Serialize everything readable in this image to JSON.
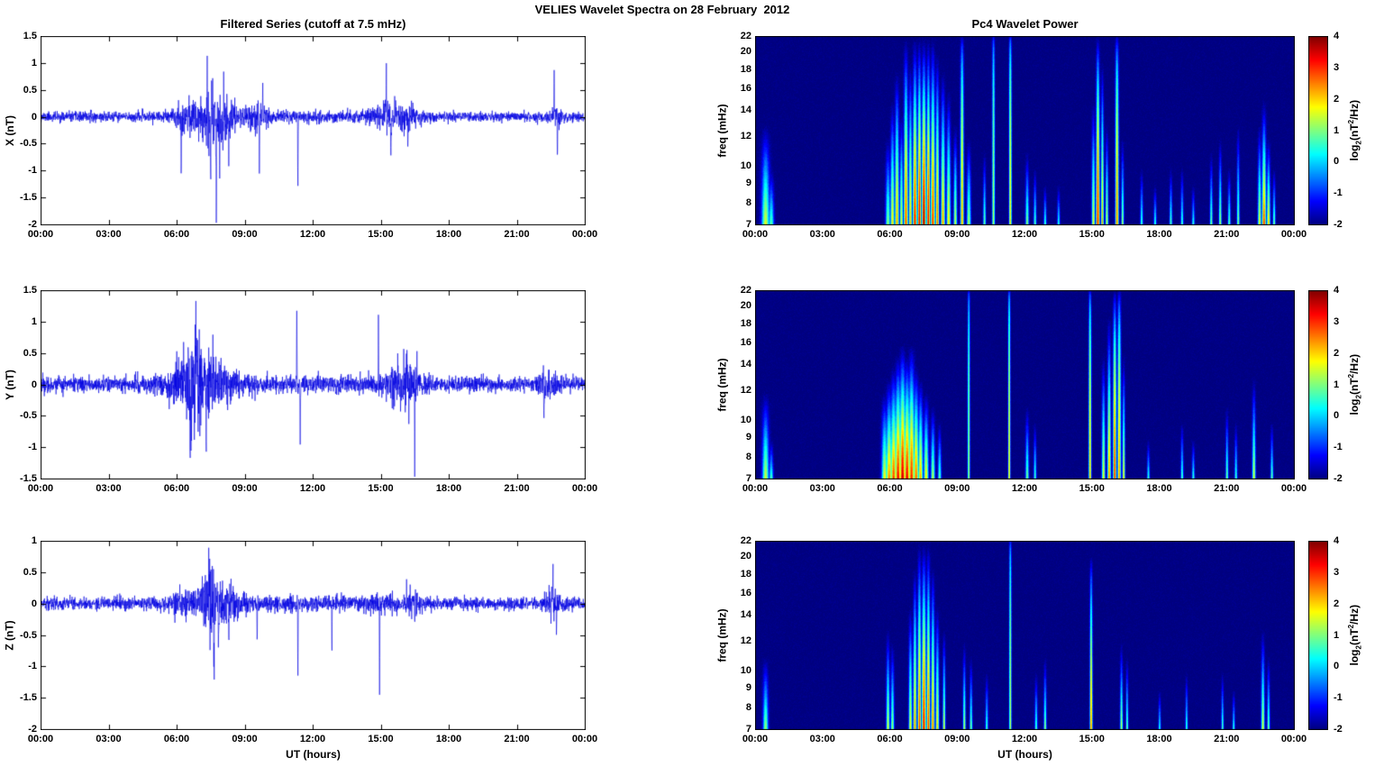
{
  "figure_title": "VELIES Wavelet Spectra on 28 February  2012",
  "colors": {
    "line": "#0000E0",
    "axis": "#000000",
    "background": "#FFFFFF",
    "colormap": "jet",
    "colormap_min": "#00007F",
    "colormap_max": "#7F0000"
  },
  "time_axis": {
    "label": "UT (hours)",
    "ticks": [
      "00:00",
      "03:00",
      "06:00",
      "09:00",
      "12:00",
      "15:00",
      "18:00",
      "21:00",
      "00:00"
    ],
    "range_hours": [
      0,
      24
    ]
  },
  "colorbar_label": {
    "prefix": "log",
    "sub": "2",
    "mid": "(nT",
    "sup": "2",
    "suffix": "/Hz)"
  },
  "chart_data": [
    {
      "type": "line",
      "component": "X",
      "title": "Filtered Series (cutoff at 7.5 mHz)",
      "ylabel": "X (nT)",
      "ylim": [
        -2,
        1.5
      ],
      "yticks": [
        1.5,
        1,
        0.5,
        0,
        -0.5,
        -1,
        -1.5,
        -2
      ],
      "xlim_hours": [
        0,
        24
      ],
      "seed": 11,
      "noise_base": 0.045,
      "bursts": [
        [
          7.7,
          0.75,
          0.2
        ],
        [
          7.7,
          0.25,
          0.12
        ],
        [
          6.3,
          0.25,
          0.08
        ],
        [
          9.6,
          0.3,
          0.1
        ],
        [
          15.5,
          0.6,
          0.09
        ],
        [
          16.3,
          0.2,
          0.06
        ],
        [
          22.7,
          0.2,
          0.1
        ],
        [
          12.0,
          3.0,
          0.012
        ]
      ],
      "spikes": [
        [
          6.2,
          -1.0
        ],
        [
          7.35,
          1.05
        ],
        [
          7.5,
          -1.55
        ],
        [
          7.75,
          -1.85
        ],
        [
          7.9,
          -1.25
        ],
        [
          8.05,
          -0.95
        ],
        [
          8.3,
          -0.8
        ],
        [
          9.65,
          -0.85
        ],
        [
          9.8,
          0.55
        ],
        [
          11.35,
          -1.3
        ],
        [
          15.25,
          1.0
        ],
        [
          15.45,
          -0.65
        ],
        [
          16.2,
          -0.55
        ],
        [
          22.65,
          1.05
        ],
        [
          22.8,
          -0.7
        ]
      ]
    },
    {
      "type": "heatmap",
      "component": "X",
      "title": "Pc4 Wavelet Power",
      "ylabel": "freq (mHz)",
      "ylim": [
        7,
        22
      ],
      "yscale": "log",
      "yticks": [
        7,
        8,
        9,
        10,
        12,
        14,
        16,
        18,
        20,
        22
      ],
      "xlim_hours": [
        0,
        24
      ],
      "seed": 101,
      "base_power": -2,
      "colorbar": {
        "label": "log2(nT^2/Hz)",
        "ticks": [
          4,
          3,
          2,
          1,
          0,
          -1,
          -2
        ],
        "range": [
          -2,
          4
        ]
      },
      "events": [
        [
          0.45,
          0.12,
          1.6,
          13
        ],
        [
          0.7,
          0.08,
          0.9,
          10
        ],
        [
          5.9,
          0.07,
          1.2,
          12
        ],
        [
          6.1,
          0.06,
          2.0,
          15
        ],
        [
          6.3,
          0.06,
          2.4,
          18
        ],
        [
          6.5,
          0.05,
          1.8,
          14
        ],
        [
          6.7,
          0.06,
          3.0,
          22
        ],
        [
          6.9,
          0.05,
          2.2,
          19
        ],
        [
          7.1,
          0.06,
          3.4,
          22
        ],
        [
          7.3,
          0.05,
          3.7,
          22
        ],
        [
          7.5,
          0.06,
          4.0,
          22
        ],
        [
          7.7,
          0.05,
          3.6,
          22
        ],
        [
          7.9,
          0.06,
          3.2,
          22
        ],
        [
          8.1,
          0.05,
          2.8,
          20
        ],
        [
          8.35,
          0.06,
          2.4,
          18
        ],
        [
          8.6,
          0.06,
          2.0,
          16
        ],
        [
          8.9,
          0.05,
          1.6,
          13
        ],
        [
          9.2,
          0.05,
          2.4,
          22,
          0.6
        ],
        [
          9.5,
          0.06,
          1.4,
          12
        ],
        [
          10.2,
          0.04,
          1.0,
          11
        ],
        [
          10.6,
          0.04,
          1.4,
          22,
          0.35
        ],
        [
          11.35,
          0.04,
          2.0,
          22,
          0.35
        ],
        [
          12.1,
          0.05,
          1.2,
          11
        ],
        [
          12.45,
          0.04,
          0.9,
          10
        ],
        [
          12.9,
          0.04,
          0.8,
          9
        ],
        [
          13.5,
          0.04,
          0.6,
          9
        ],
        [
          15.05,
          0.05,
          1.8,
          15
        ],
        [
          15.25,
          0.05,
          3.4,
          22,
          0.9
        ],
        [
          15.45,
          0.04,
          2.4,
          19
        ],
        [
          15.65,
          0.04,
          1.7,
          13
        ],
        [
          16.1,
          0.05,
          2.6,
          22,
          0.6
        ],
        [
          16.35,
          0.04,
          1.4,
          12
        ],
        [
          17.2,
          0.04,
          0.8,
          10
        ],
        [
          17.8,
          0.04,
          0.7,
          9
        ],
        [
          18.5,
          0.04,
          0.9,
          10
        ],
        [
          19.0,
          0.04,
          0.8,
          10
        ],
        [
          19.5,
          0.04,
          0.6,
          9
        ],
        [
          20.3,
          0.04,
          1.1,
          11
        ],
        [
          20.7,
          0.04,
          1.4,
          12
        ],
        [
          21.1,
          0.04,
          1.0,
          10
        ],
        [
          21.5,
          0.04,
          1.2,
          13
        ],
        [
          22.45,
          0.05,
          1.8,
          13
        ],
        [
          22.65,
          0.06,
          3.0,
          15
        ],
        [
          22.85,
          0.05,
          2.2,
          12
        ],
        [
          23.1,
          0.04,
          1.1,
          10
        ]
      ]
    },
    {
      "type": "line",
      "component": "Y",
      "title": "",
      "ylabel": "Y (nT)",
      "ylim": [
        -1.5,
        1.5
      ],
      "yticks": [
        1.5,
        1,
        0.5,
        0,
        -0.5,
        -1,
        -1.5
      ],
      "xlim_hours": [
        0,
        24
      ],
      "seed": 22,
      "noise_base": 0.06,
      "bursts": [
        [
          7.0,
          0.9,
          0.22
        ],
        [
          6.8,
          0.35,
          0.12
        ],
        [
          15.9,
          0.5,
          0.12
        ],
        [
          16.2,
          0.2,
          0.08
        ],
        [
          22.3,
          0.25,
          0.08
        ],
        [
          12.0,
          3.0,
          0.015
        ]
      ],
      "spikes": [
        [
          6.6,
          -1.05
        ],
        [
          6.85,
          0.8
        ],
        [
          7.3,
          -0.85
        ],
        [
          7.6,
          0.6
        ],
        [
          11.3,
          1.3
        ],
        [
          11.45,
          -1.0
        ],
        [
          14.9,
          1.05
        ],
        [
          16.5,
          -1.4
        ],
        [
          16.6,
          0.55
        ],
        [
          22.2,
          -0.65
        ]
      ]
    },
    {
      "type": "heatmap",
      "component": "Y",
      "title": "",
      "ylabel": "freq (mHz)",
      "ylim": [
        7,
        22
      ],
      "yscale": "log",
      "yticks": [
        7,
        8,
        9,
        10,
        12,
        14,
        16,
        18,
        20,
        22
      ],
      "xlim_hours": [
        0,
        24
      ],
      "seed": 102,
      "base_power": -2,
      "colorbar": {
        "label": "log2(nT^2/Hz)",
        "ticks": [
          4,
          3,
          2,
          1,
          0,
          -1,
          -2
        ],
        "range": [
          -2,
          4
        ]
      },
      "events": [
        [
          0.45,
          0.1,
          1.5,
          12
        ],
        [
          0.7,
          0.06,
          0.8,
          9
        ],
        [
          5.75,
          0.09,
          1.8,
          12
        ],
        [
          5.95,
          0.09,
          2.6,
          13
        ],
        [
          6.15,
          0.09,
          3.0,
          14
        ],
        [
          6.35,
          0.09,
          3.4,
          15
        ],
        [
          6.55,
          0.09,
          3.7,
          16
        ],
        [
          6.75,
          0.09,
          3.5,
          15
        ],
        [
          6.95,
          0.09,
          3.2,
          16
        ],
        [
          7.15,
          0.08,
          2.8,
          14
        ],
        [
          7.35,
          0.07,
          2.4,
          13
        ],
        [
          7.6,
          0.07,
          2.0,
          12
        ],
        [
          7.9,
          0.06,
          1.5,
          11
        ],
        [
          8.2,
          0.05,
          1.0,
          10
        ],
        [
          9.5,
          0.035,
          1.4,
          22,
          0.3
        ],
        [
          11.3,
          0.035,
          2.0,
          22,
          0.3
        ],
        [
          12.1,
          0.05,
          1.1,
          11
        ],
        [
          12.45,
          0.04,
          0.8,
          10
        ],
        [
          14.9,
          0.04,
          2.2,
          22,
          0.4
        ],
        [
          15.5,
          0.05,
          1.8,
          15
        ],
        [
          15.75,
          0.05,
          2.6,
          19
        ],
        [
          16.0,
          0.05,
          3.1,
          22,
          0.8
        ],
        [
          16.2,
          0.05,
          2.5,
          22,
          0.6
        ],
        [
          16.4,
          0.04,
          1.9,
          15
        ],
        [
          17.5,
          0.04,
          0.7,
          9
        ],
        [
          19.0,
          0.04,
          0.9,
          10
        ],
        [
          19.5,
          0.04,
          0.7,
          9
        ],
        [
          21.0,
          0.04,
          1.1,
          11
        ],
        [
          21.4,
          0.04,
          0.8,
          10
        ],
        [
          22.2,
          0.05,
          1.7,
          13
        ],
        [
          23.0,
          0.04,
          1.0,
          10
        ]
      ]
    },
    {
      "type": "line",
      "component": "Z",
      "title": "",
      "ylabel": "Z (nT)",
      "ylim": [
        -2,
        1
      ],
      "yticks": [
        1,
        0.5,
        0,
        -0.5,
        -1,
        -1.5,
        -2
      ],
      "xlim_hours": [
        0,
        24
      ],
      "seed": 33,
      "noise_base": 0.05,
      "bursts": [
        [
          7.7,
          0.7,
          0.16
        ],
        [
          7.6,
          0.25,
          0.1
        ],
        [
          6.2,
          0.25,
          0.07
        ],
        [
          15.0,
          0.25,
          0.06
        ],
        [
          16.4,
          0.25,
          0.08
        ],
        [
          22.6,
          0.25,
          0.08
        ],
        [
          12.0,
          3.0,
          0.012
        ]
      ],
      "spikes": [
        [
          7.45,
          0.6
        ],
        [
          7.65,
          -0.95
        ],
        [
          7.85,
          -0.85
        ],
        [
          8.3,
          -0.65
        ],
        [
          9.55,
          -0.55
        ],
        [
          11.35,
          -1.2
        ],
        [
          12.85,
          -0.7
        ],
        [
          14.95,
          -1.65
        ],
        [
          16.5,
          -0.55
        ],
        [
          22.6,
          0.55
        ],
        [
          22.75,
          -0.45
        ]
      ]
    },
    {
      "type": "heatmap",
      "component": "Z",
      "title": "",
      "ylabel": "freq (mHz)",
      "ylim": [
        7,
        22
      ],
      "yscale": "log",
      "yticks": [
        7,
        8,
        9,
        10,
        12,
        14,
        16,
        18,
        20,
        22
      ],
      "xlim_hours": [
        0,
        24
      ],
      "seed": 103,
      "base_power": -2,
      "colorbar": {
        "label": "log2(nT^2/Hz)",
        "ticks": [
          4,
          3,
          2,
          1,
          0,
          -1,
          -2
        ],
        "range": [
          -2,
          4
        ]
      },
      "events": [
        [
          0.45,
          0.08,
          1.2,
          11
        ],
        [
          5.9,
          0.05,
          1.7,
          13
        ],
        [
          6.1,
          0.05,
          1.3,
          12
        ],
        [
          6.9,
          0.05,
          1.9,
          15
        ],
        [
          7.1,
          0.05,
          2.5,
          19
        ],
        [
          7.3,
          0.05,
          3.1,
          22
        ],
        [
          7.5,
          0.06,
          3.5,
          22
        ],
        [
          7.7,
          0.05,
          3.1,
          22
        ],
        [
          7.9,
          0.05,
          2.7,
          19
        ],
        [
          8.1,
          0.05,
          2.1,
          15
        ],
        [
          8.4,
          0.04,
          1.7,
          13
        ],
        [
          9.3,
          0.04,
          1.5,
          12
        ],
        [
          9.6,
          0.04,
          1.1,
          11
        ],
        [
          10.3,
          0.04,
          0.8,
          10
        ],
        [
          11.35,
          0.035,
          1.5,
          22,
          0.3
        ],
        [
          12.5,
          0.04,
          0.9,
          10
        ],
        [
          12.9,
          0.04,
          1.3,
          11
        ],
        [
          14.95,
          0.04,
          2.6,
          20,
          0.8
        ],
        [
          16.3,
          0.04,
          1.5,
          12
        ],
        [
          16.55,
          0.035,
          1.1,
          11
        ],
        [
          18.0,
          0.035,
          0.6,
          9
        ],
        [
          19.2,
          0.035,
          0.8,
          10
        ],
        [
          20.8,
          0.035,
          0.9,
          10
        ],
        [
          21.3,
          0.035,
          0.7,
          9
        ],
        [
          22.6,
          0.05,
          1.7,
          13
        ],
        [
          22.85,
          0.04,
          1.1,
          11
        ]
      ]
    }
  ]
}
